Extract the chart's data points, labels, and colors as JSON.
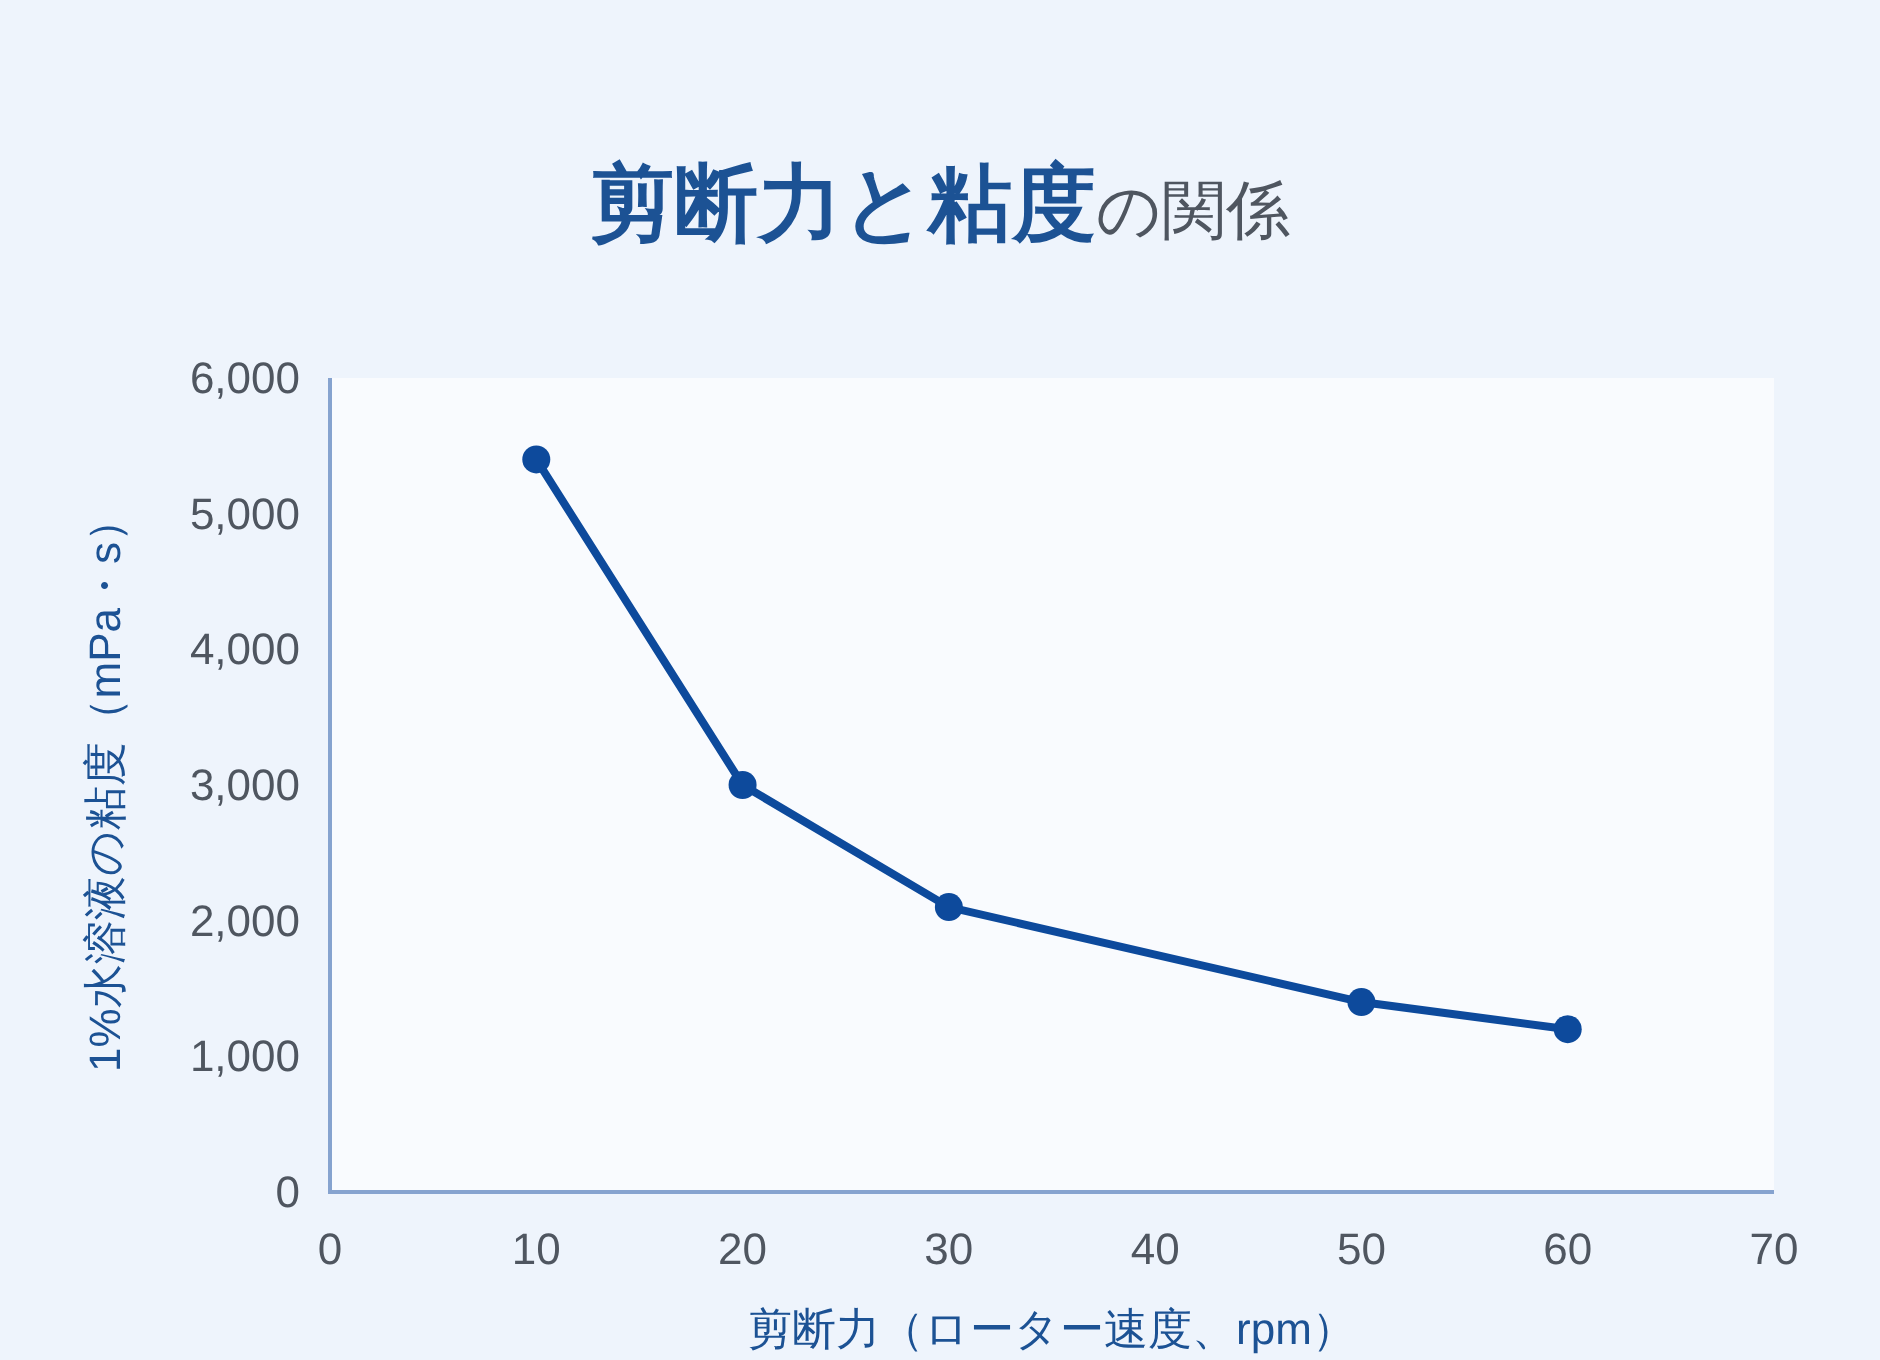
{
  "chart_data": {
    "type": "line",
    "title": "**剪断力と粘度**の関係",
    "xlabel": "剪断力（ローター速度、rpm）",
    "ylabel": "1%水溶液の粘度（mPa・s）",
    "x": [
      10,
      20,
      30,
      50,
      60
    ],
    "series": [
      {
        "color": "#0d4a9c",
        "values": [
          5400,
          3000,
          2100,
          1400,
          1200
        ]
      }
    ],
    "xlim": [
      0,
      70
    ],
    "xticks": [
      0,
      10,
      20,
      30,
      40,
      50,
      60,
      70
    ],
    "ylim": [
      0,
      6000
    ],
    "yticks": [
      0,
      {
        "value": 1000,
        "label": "1,000"
      },
      {
        "value": 2000,
        "label": "2,000"
      },
      {
        "value": 3000,
        "label": "3,000"
      },
      {
        "value": 4000,
        "label": "4,000"
      },
      {
        "value": 5000,
        "label": "5,000"
      },
      {
        "value": 6000,
        "label": "6,000"
      }
    ],
    "marker": "circle",
    "line_style": "solid"
  }
}
